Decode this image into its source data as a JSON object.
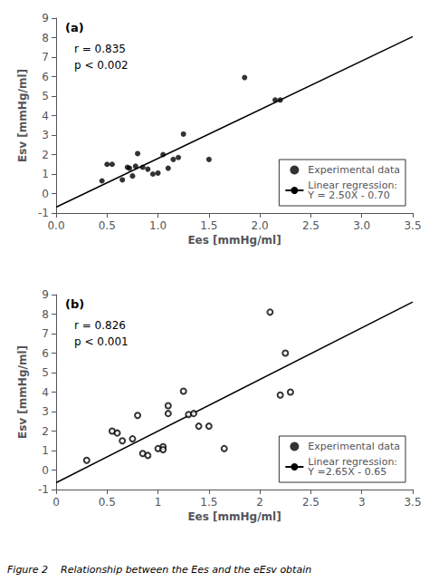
{
  "caption": "Figure 2    Relationship between the Ees and the eEsv obtain",
  "chart_data": [
    {
      "type": "scatter",
      "annotations": [
        "(a)",
        "r = 0.835",
        "p < 0.002"
      ],
      "xlabel": "Ees [mmHg/ml]",
      "ylabel": "Esv [mmHg/ml]",
      "xlim": [
        0.0,
        3.5
      ],
      "ylim": [
        -1,
        9
      ],
      "xticks": [
        {
          "value": 0.0,
          "label": "0.0"
        },
        0.5,
        {
          "value": 1.0,
          "label": "1.0"
        },
        1.5,
        {
          "value": 2.0,
          "label": "2.0"
        },
        2.5,
        {
          "value": 3.0,
          "label": "3.0"
        },
        3.5
      ],
      "yticks": [
        -1,
        0,
        1,
        2,
        3,
        4,
        5,
        6,
        7,
        8,
        9
      ],
      "grid": false,
      "legend": "lower right",
      "series": [
        {
          "name": "Experimental data",
          "type": "scatter",
          "marker": "circle",
          "color": "#000000",
          "x": [
            0.45,
            0.5,
            0.55,
            0.65,
            0.7,
            0.72,
            0.75,
            0.78,
            0.8,
            0.85,
            0.9,
            0.95,
            1.0,
            1.05,
            1.1,
            1.15,
            1.2,
            1.25,
            1.5,
            1.85,
            2.15,
            2.2
          ],
          "values": [
            0.65,
            1.5,
            1.5,
            0.7,
            1.35,
            1.3,
            0.9,
            1.4,
            2.05,
            1.35,
            1.25,
            1.0,
            1.05,
            2.0,
            1.3,
            1.75,
            1.85,
            3.05,
            1.75,
            5.95,
            4.8,
            4.8
          ]
        },
        {
          "name": "Linear regression:\nY = 2.50X - 0.70",
          "type": "line",
          "color": "#000000",
          "x": [
            0.0,
            3.5
          ],
          "values": [
            -0.7,
            8.05
          ]
        }
      ]
    },
    {
      "type": "scatter",
      "annotations": [
        "(b)",
        "r = 0.826",
        "p < 0.001"
      ],
      "xlabel": "Ees [mmHg/ml]",
      "ylabel": "Esv [mmHg/ml]",
      "xlim": [
        0.0,
        3.5
      ],
      "ylim": [
        -1,
        9
      ],
      "xticks": [
        0,
        0.5,
        1,
        1.5,
        2,
        2.5,
        3,
        3.5
      ],
      "yticks": [
        -1,
        0,
        1,
        2,
        3,
        4,
        5,
        6,
        7,
        8,
        9
      ],
      "grid": false,
      "legend": "lower right",
      "series": [
        {
          "name": "Experimental data",
          "type": "scatter",
          "marker": "circle_open",
          "color": "#000000",
          "x": [
            0.3,
            0.55,
            0.6,
            0.65,
            0.75,
            0.8,
            0.85,
            0.9,
            1.0,
            1.05,
            1.05,
            1.1,
            1.1,
            1.25,
            1.3,
            1.35,
            1.4,
            1.5,
            1.65,
            2.1,
            2.2,
            2.25,
            2.3
          ],
          "values": [
            0.5,
            2.0,
            1.9,
            1.5,
            1.6,
            2.8,
            0.85,
            0.75,
            1.1,
            1.2,
            1.05,
            3.3,
            2.9,
            4.05,
            2.85,
            2.9,
            2.25,
            2.25,
            1.1,
            8.1,
            3.85,
            6.0,
            4.0
          ]
        },
        {
          "name": "Linear regression:\nY =2.65X - 0.65",
          "type": "line",
          "color": "#000000",
          "x": [
            0.0,
            3.5
          ],
          "values": [
            -0.65,
            8.625
          ]
        }
      ]
    }
  ]
}
